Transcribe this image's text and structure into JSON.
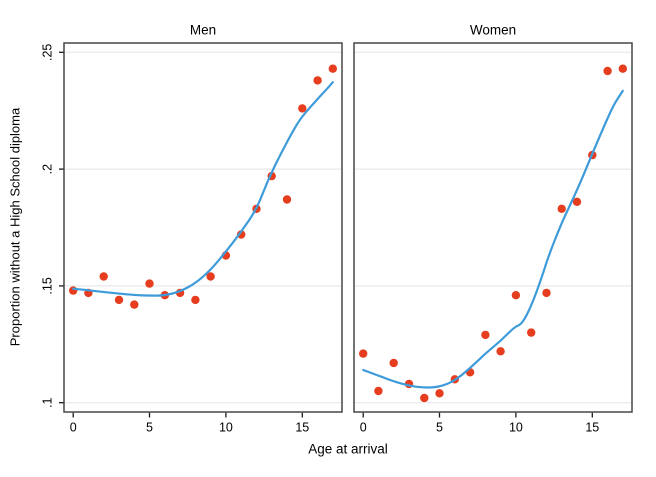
{
  "figure": {
    "background": "#ffffff"
  },
  "style": {
    "point_color": "#e63d1f",
    "line_color": "#3e9bda",
    "grid_color": "#e8e8e8",
    "frame_color": "#474747",
    "tick_color": "#1a1a1a",
    "text_color": "#000000"
  },
  "chart_data": {
    "type": "scatter",
    "title": "",
    "xlabel": "Age at arrival",
    "ylabel": "Proportion without a High School diploma",
    "x": [
      0,
      1,
      2,
      3,
      4,
      5,
      6,
      7,
      8,
      9,
      10,
      11,
      12,
      13,
      14,
      15,
      16,
      17
    ],
    "xlim": [
      -0.6,
      17.6
    ],
    "ylim": [
      0.096,
      0.254
    ],
    "grid": "horizontal",
    "legend": "none",
    "x_ticks": {
      "values": [
        0,
        5,
        10,
        15
      ],
      "labels": [
        "0",
        "5",
        "10",
        "15"
      ]
    },
    "y_ticks": {
      "values": [
        0.1,
        0.15,
        0.2,
        0.25
      ],
      "labels": [
        ".1",
        ".15",
        ".2",
        ".25"
      ]
    },
    "panels": [
      {
        "title": "Men",
        "scatter_y": [
          0.148,
          0.147,
          0.154,
          0.144,
          0.142,
          0.151,
          0.146,
          0.147,
          0.144,
          0.154,
          0.163,
          0.172,
          0.183,
          0.197,
          0.187,
          0.226,
          0.238,
          0.243
        ],
        "lowess_line": [
          [
            0,
            0.1488
          ],
          [
            1,
            0.1481
          ],
          [
            2,
            0.1474
          ],
          [
            3,
            0.1467
          ],
          [
            4,
            0.1461
          ],
          [
            5,
            0.1458
          ],
          [
            6,
            0.1459
          ],
          [
            7,
            0.1476
          ],
          [
            8,
            0.1511
          ],
          [
            9,
            0.1568
          ],
          [
            10,
            0.1647
          ],
          [
            11,
            0.1732
          ],
          [
            12,
            0.1828
          ],
          [
            12.7,
            0.1946
          ],
          [
            13.6,
            0.2067
          ],
          [
            14.3,
            0.2153
          ],
          [
            14.9,
            0.2219
          ],
          [
            15.5,
            0.2264
          ],
          [
            16.1,
            0.2307
          ],
          [
            16.6,
            0.2342
          ],
          [
            17,
            0.2372
          ]
        ]
      },
      {
        "title": "Women",
        "scatter_y": [
          0.121,
          0.105,
          0.117,
          0.108,
          0.102,
          0.104,
          0.11,
          0.113,
          0.129,
          0.122,
          0.146,
          0.13,
          0.147,
          0.183,
          0.186,
          0.206,
          0.242,
          0.243
        ],
        "lowess_line": [
          [
            0,
            0.114
          ],
          [
            1,
            0.1116
          ],
          [
            2,
            0.1091
          ],
          [
            3,
            0.1072
          ],
          [
            4,
            0.1064
          ],
          [
            5,
            0.1067
          ],
          [
            6,
            0.1094
          ],
          [
            7,
            0.1148
          ],
          [
            8,
            0.1211
          ],
          [
            9,
            0.1264
          ],
          [
            9.9,
            0.1324
          ],
          [
            10.4,
            0.1337
          ],
          [
            11,
            0.1413
          ],
          [
            11.7,
            0.1538
          ],
          [
            12.1,
            0.1622
          ],
          [
            13,
            0.1772
          ],
          [
            14,
            0.1908
          ],
          [
            15,
            0.2066
          ],
          [
            15.7,
            0.2174
          ],
          [
            16.4,
            0.2277
          ],
          [
            17,
            0.2335
          ]
        ]
      }
    ]
  }
}
